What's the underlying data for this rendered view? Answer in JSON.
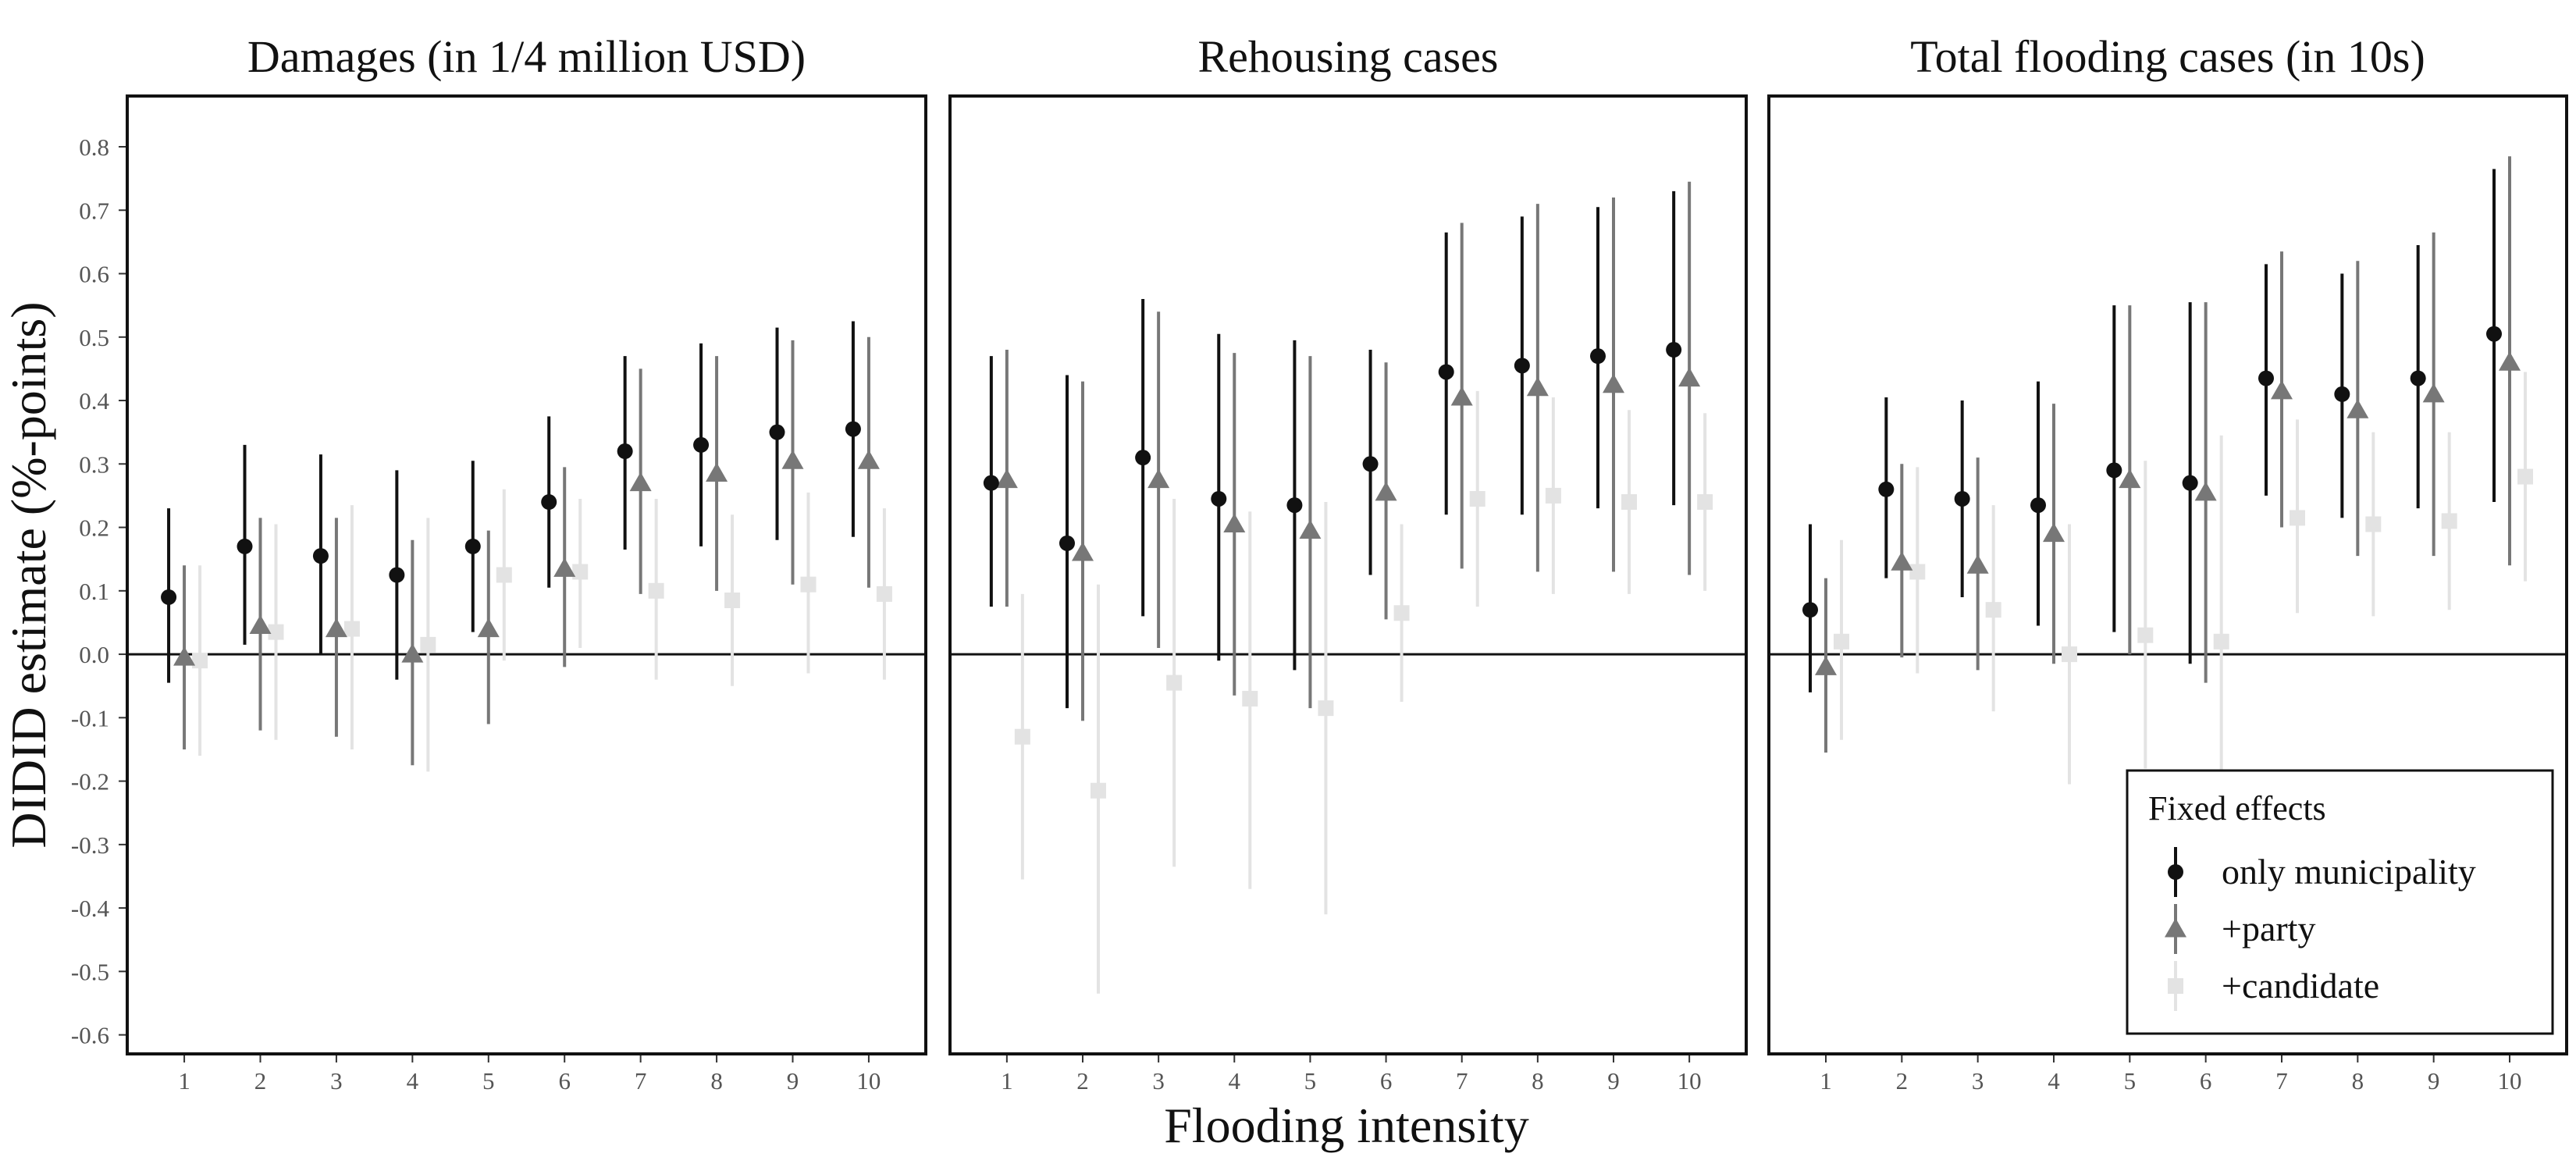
{
  "chart_data": {
    "type": "scatter",
    "ylabel": "DIDID estimate (%-points)",
    "xlabel": "Flooding intensity",
    "x": [
      1,
      2,
      3,
      4,
      5,
      6,
      7,
      8,
      9,
      10
    ],
    "x_tick_labels": [
      "1",
      "2",
      "3",
      "4",
      "5",
      "6",
      "7",
      "8",
      "9",
      "10"
    ],
    "ylim": [
      -0.63,
      0.88
    ],
    "y_ticks": [
      -0.6,
      -0.5,
      -0.4,
      -0.3,
      -0.2,
      -0.1,
      0.0,
      0.1,
      0.2,
      0.3,
      0.4,
      0.5,
      0.6,
      0.7,
      0.8
    ],
    "y_tick_labels": [
      "-0.6",
      "-0.5",
      "-0.4",
      "-0.3",
      "-0.2",
      "-0.1",
      "0.0",
      "0.1",
      "0.2",
      "0.3",
      "0.4",
      "0.5",
      "0.6",
      "0.7",
      "0.8"
    ],
    "reference_line_y": 0,
    "grid": false,
    "legend": {
      "title": "Fixed effects",
      "position": "bottom-right",
      "entries": [
        {
          "label": "only municipality",
          "color": "#111111",
          "shape": "circle"
        },
        {
          "label": "+party",
          "color": "#777777",
          "shape": "triangle"
        },
        {
          "label": "+candidate",
          "color": "#e3e3e3",
          "shape": "square"
        }
      ]
    },
    "panels": [
      {
        "title": "Damages (in 1/4 million USD)",
        "series": [
          {
            "name": "only municipality",
            "estimate": [
              0.09,
              0.17,
              0.155,
              0.125,
              0.17,
              0.24,
              0.32,
              0.33,
              0.35,
              0.355
            ],
            "lower": [
              -0.045,
              0.015,
              0.0,
              -0.04,
              0.035,
              0.105,
              0.165,
              0.17,
              0.18,
              0.185
            ],
            "upper": [
              0.23,
              0.33,
              0.315,
              0.29,
              0.305,
              0.375,
              0.47,
              0.49,
              0.515,
              0.525
            ]
          },
          {
            "name": "+party",
            "estimate": [
              -0.005,
              0.045,
              0.04,
              0.0,
              0.04,
              0.135,
              0.27,
              0.285,
              0.305,
              0.305
            ],
            "lower": [
              -0.15,
              -0.12,
              -0.13,
              -0.175,
              -0.11,
              -0.02,
              0.095,
              0.1,
              0.11,
              0.105
            ],
            "upper": [
              0.14,
              0.215,
              0.215,
              0.18,
              0.195,
              0.295,
              0.45,
              0.47,
              0.495,
              0.5
            ]
          },
          {
            "name": "+candidate",
            "estimate": [
              -0.01,
              0.035,
              0.04,
              0.015,
              0.125,
              0.13,
              0.1,
              0.085,
              0.11,
              0.095
            ],
            "lower": [
              -0.16,
              -0.135,
              -0.15,
              -0.185,
              -0.01,
              0.01,
              -0.04,
              -0.05,
              -0.03,
              -0.04
            ],
            "upper": [
              0.14,
              0.205,
              0.235,
              0.215,
              0.26,
              0.245,
              0.245,
              0.22,
              0.255,
              0.23
            ]
          }
        ]
      },
      {
        "title": "Rehousing cases",
        "series": [
          {
            "name": "only municipality",
            "estimate": [
              0.27,
              0.175,
              0.31,
              0.245,
              0.235,
              0.3,
              0.445,
              0.455,
              0.47,
              0.48
            ],
            "lower": [
              0.075,
              -0.085,
              0.06,
              -0.01,
              -0.025,
              0.125,
              0.22,
              0.22,
              0.23,
              0.235
            ],
            "upper": [
              0.47,
              0.44,
              0.56,
              0.505,
              0.495,
              0.48,
              0.665,
              0.69,
              0.705,
              0.73
            ]
          },
          {
            "name": "+party",
            "estimate": [
              0.275,
              0.16,
              0.275,
              0.205,
              0.195,
              0.255,
              0.405,
              0.42,
              0.425,
              0.435
            ],
            "lower": [
              0.075,
              -0.105,
              0.01,
              -0.065,
              -0.085,
              0.055,
              0.135,
              0.13,
              0.13,
              0.125
            ],
            "upper": [
              0.48,
              0.43,
              0.54,
              0.475,
              0.47,
              0.46,
              0.68,
              0.71,
              0.72,
              0.745
            ]
          },
          {
            "name": "+candidate",
            "estimate": [
              -0.13,
              -0.215,
              -0.045,
              -0.07,
              -0.085,
              0.065,
              0.245,
              0.25,
              0.24,
              0.24
            ],
            "lower": [
              -0.355,
              -0.535,
              -0.335,
              -0.37,
              -0.41,
              -0.075,
              0.075,
              0.095,
              0.095,
              0.1
            ],
            "upper": [
              0.095,
              0.11,
              0.245,
              0.225,
              0.24,
              0.205,
              0.415,
              0.405,
              0.385,
              0.38
            ]
          }
        ]
      },
      {
        "title": "Total flooding cases (in 10s)",
        "series": [
          {
            "name": "only municipality",
            "estimate": [
              0.07,
              0.26,
              0.245,
              0.235,
              0.29,
              0.27,
              0.435,
              0.41,
              0.435,
              0.505
            ],
            "lower": [
              -0.06,
              0.12,
              0.09,
              0.045,
              0.035,
              -0.015,
              0.25,
              0.215,
              0.23,
              0.24
            ],
            "upper": [
              0.205,
              0.405,
              0.4,
              0.43,
              0.55,
              0.555,
              0.615,
              0.6,
              0.645,
              0.765
            ]
          },
          {
            "name": "+party",
            "estimate": [
              -0.02,
              0.145,
              0.14,
              0.19,
              0.275,
              0.255,
              0.415,
              0.385,
              0.41,
              0.46
            ],
            "lower": [
              -0.155,
              -0.005,
              -0.025,
              -0.015,
              0.0,
              -0.045,
              0.2,
              0.155,
              0.155,
              0.14
            ],
            "upper": [
              0.12,
              0.3,
              0.31,
              0.395,
              0.55,
              0.555,
              0.635,
              0.62,
              0.665,
              0.785
            ]
          },
          {
            "name": "+candidate",
            "estimate": [
              0.02,
              0.13,
              0.07,
              0.0,
              0.03,
              0.02,
              0.215,
              0.205,
              0.21,
              0.28
            ],
            "lower": [
              -0.135,
              -0.03,
              -0.09,
              -0.205,
              -0.18,
              -0.185,
              0.065,
              0.06,
              0.07,
              0.115
            ],
            "upper": [
              0.18,
              0.295,
              0.235,
              0.205,
              0.305,
              0.345,
              0.37,
              0.35,
              0.35,
              0.445
            ]
          }
        ]
      }
    ]
  }
}
